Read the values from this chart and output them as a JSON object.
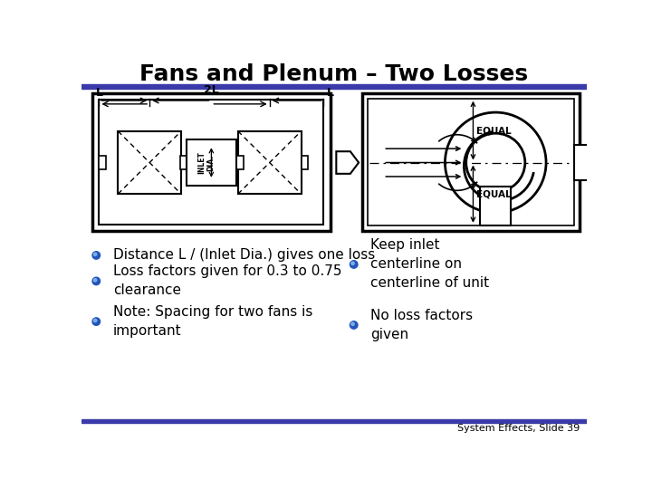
{
  "title": "Fans and Plenum – Two Losses",
  "title_fontsize": 18,
  "title_fontweight": "bold",
  "bg_color": "#ffffff",
  "header_bar_color": "#3a3aaa",
  "footer_bar_color": "#3a3aaa",
  "bullet_color": "#2255bb",
  "bullet_points_left": [
    "Distance L / (Inlet Dia.) gives one loss",
    "Loss factors given for 0.3 to 0.75\nclearance",
    "Note: Spacing for two fans is\nimportant"
  ],
  "bullet_points_right": [
    "Keep inlet\ncenterline on\ncenterline of unit",
    "No loss factors\ngiven"
  ],
  "footer_text": "System Effects, Slide 39",
  "footer_fontsize": 8,
  "text_fontsize": 11
}
